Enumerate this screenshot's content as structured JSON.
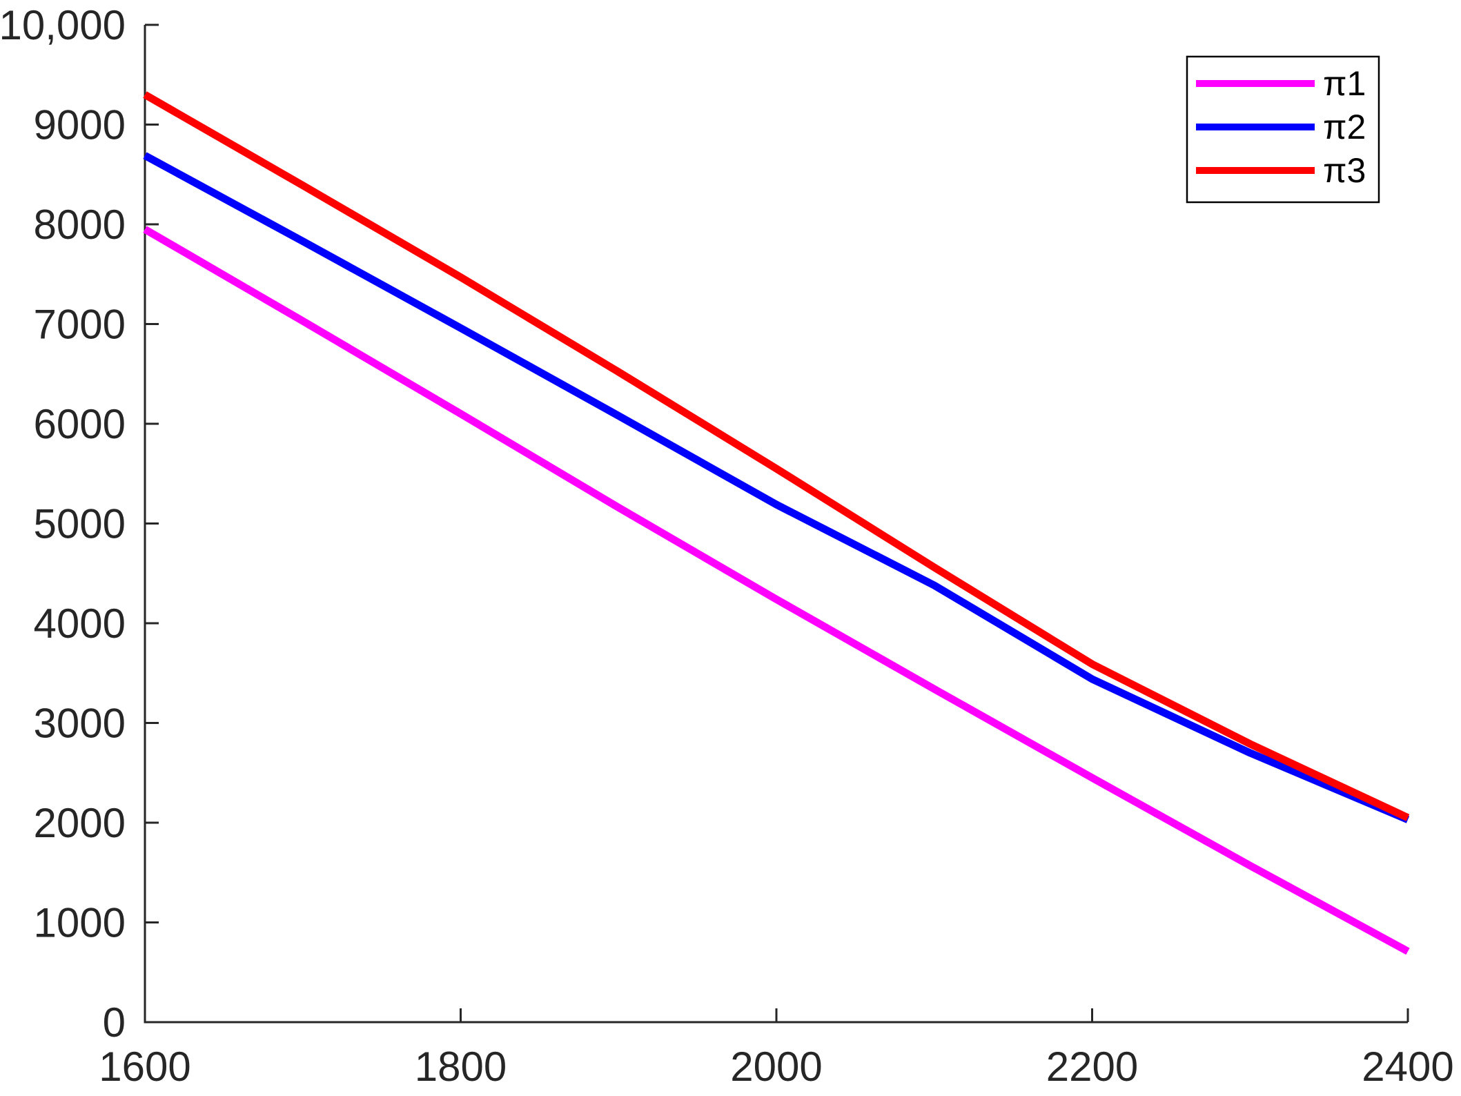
{
  "figure": {
    "background": "#FFFFFF"
  },
  "chart_data": {
    "type": "line",
    "title": "",
    "xlabel": "",
    "ylabel": "",
    "xlim": [
      1600,
      2400
    ],
    "ylim": [
      0,
      10000
    ],
    "grid": false,
    "axis_color": "#262626",
    "xticks": [
      {
        "value": 1600,
        "label": "1600"
      },
      {
        "value": 1800,
        "label": "1800"
      },
      {
        "value": 2000,
        "label": "2000"
      },
      {
        "value": 2200,
        "label": "2200"
      },
      {
        "value": 2400,
        "label": "2400"
      }
    ],
    "yticks": [
      {
        "value": 0,
        "label": "0"
      },
      {
        "value": 1000,
        "label": "1000"
      },
      {
        "value": 2000,
        "label": "2000"
      },
      {
        "value": 3000,
        "label": "3000"
      },
      {
        "value": 4000,
        "label": "4000"
      },
      {
        "value": 5000,
        "label": "5000"
      },
      {
        "value": 6000,
        "label": "6000"
      },
      {
        "value": 7000,
        "label": "7000"
      },
      {
        "value": 8000,
        "label": "8000"
      },
      {
        "value": 9000,
        "label": "9000"
      },
      {
        "value": 10000,
        "label": "10,000"
      }
    ],
    "x": [
      1600,
      1700,
      1800,
      1900,
      2000,
      2100,
      2200,
      2300,
      2400
    ],
    "series": [
      {
        "name": "π1",
        "color": "#FF00FF",
        "values": [
          7950,
          7030,
          6100,
          5160,
          4240,
          3340,
          2450,
          1570,
          710
        ]
      },
      {
        "name": "π2",
        "color": "#0000FF",
        "values": [
          8690,
          7830,
          6960,
          6080,
          5190,
          4380,
          3440,
          2700,
          2030
        ]
      },
      {
        "name": "π3",
        "color": "#FF0000",
        "values": [
          9300,
          8390,
          7470,
          6520,
          5550,
          4560,
          3590,
          2790,
          2050
        ]
      }
    ],
    "legend": {
      "position": "top-right",
      "background": "#FFFFFF",
      "border_color": "#000000"
    }
  }
}
